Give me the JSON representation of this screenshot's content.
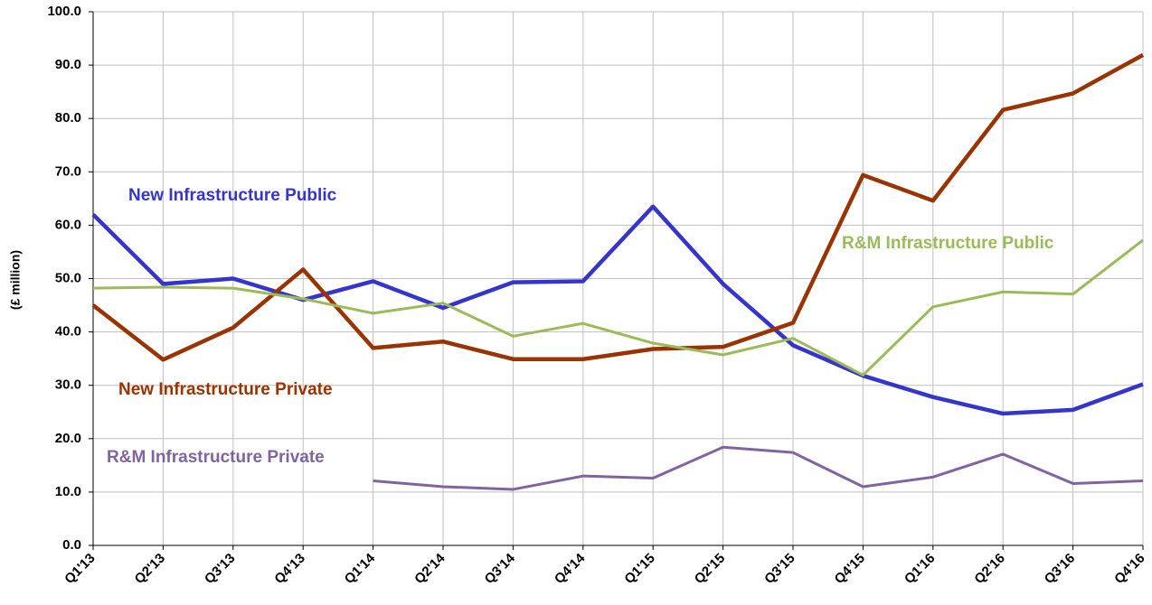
{
  "chart_data": {
    "type": "line",
    "y_label": "(£ million)",
    "categories": [
      "Q1'13",
      "Q2'13",
      "Q3'13",
      "Q4'13",
      "Q1'14",
      "Q2'14",
      "Q3'14",
      "Q4'14",
      "Q1'15",
      "Q2'15",
      "Q3'15",
      "Q4'15",
      "Q1'16",
      "Q2'16",
      "Q3'16",
      "Q4'16"
    ],
    "series": [
      {
        "name": "New Infrastructure Public",
        "color": "#3535cc",
        "values": [
          62.0,
          49.0,
          50.0,
          46.0,
          49.5,
          44.5,
          49.3,
          49.5,
          63.5,
          49.0,
          37.5,
          31.8,
          27.8,
          24.7,
          25.4,
          30.2
        ]
      },
      {
        "name": "New Infrastructure Private",
        "color": "#993300",
        "values": [
          45.0,
          34.8,
          40.8,
          51.7,
          37.0,
          38.2,
          34.9,
          34.9,
          36.8,
          37.2,
          41.7,
          69.4,
          64.6,
          81.6,
          84.7,
          91.9
        ]
      },
      {
        "name": "R&M Infrastructure Public",
        "color": "#9bbb59",
        "values": [
          48.2,
          48.4,
          48.2,
          46.2,
          43.5,
          45.4,
          39.2,
          41.6,
          37.9,
          35.7,
          38.8,
          31.9,
          44.7,
          47.5,
          47.1,
          57.2
        ]
      },
      {
        "name": "R&M Infrastructure Private",
        "color": "#8064a2",
        "values": [
          null,
          null,
          null,
          null,
          12.1,
          11.0,
          10.5,
          13.0,
          12.6,
          18.4,
          17.4,
          11.0,
          12.8,
          17.1,
          11.6,
          12.1
        ]
      }
    ],
    "ylim": [
      0,
      100
    ],
    "yticks": [
      {
        "value": 0,
        "label": "0.0"
      },
      {
        "value": 10,
        "label": "10.0"
      },
      {
        "value": 20,
        "label": "20.0"
      },
      {
        "value": 30,
        "label": "30.0"
      },
      {
        "value": 40,
        "label": "40.0"
      },
      {
        "value": 50,
        "label": "50.0"
      },
      {
        "value": 60,
        "label": "60.0"
      },
      {
        "value": 70,
        "label": "70.0"
      },
      {
        "value": 80,
        "label": "80.0"
      },
      {
        "value": 90,
        "label": "90.0"
      },
      {
        "value": 100,
        "label": "100.0"
      }
    ],
    "grid": true
  }
}
